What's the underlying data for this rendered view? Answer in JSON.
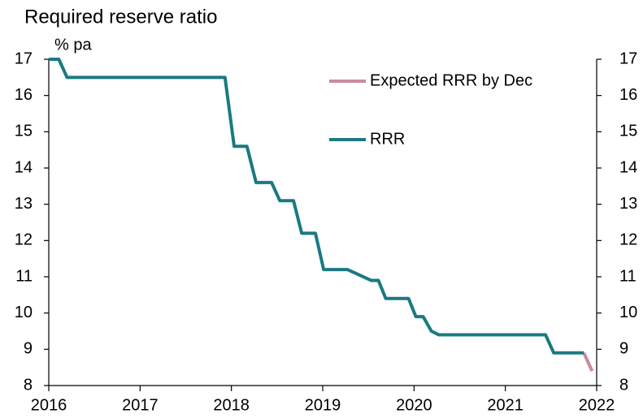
{
  "chart_data": {
    "type": "line",
    "title": "Required reserve ratio",
    "y_label": "% pa",
    "series": [
      {
        "name": "Expected RRR by Dec",
        "color": "#c98aa0",
        "x": [
          2021.86,
          2021.95
        ],
        "values": [
          8.9,
          8.4
        ]
      },
      {
        "name": "RRR",
        "color": "#1a7a80",
        "x": [
          2016.0,
          2016.11,
          2016.2,
          2017.93,
          2018.03,
          2018.17,
          2018.27,
          2018.44,
          2018.53,
          2018.68,
          2018.77,
          2018.92,
          2019.01,
          2019.27,
          2019.53,
          2019.61,
          2019.69,
          2019.94,
          2020.02,
          2020.1,
          2020.19,
          2020.27,
          2021.44,
          2021.53,
          2021.86
        ],
        "values": [
          17,
          17,
          16.5,
          16.5,
          14.6,
          14.6,
          13.6,
          13.6,
          13.1,
          13.1,
          12.2,
          12.2,
          11.2,
          11.2,
          10.9,
          10.9,
          10.4,
          10.4,
          9.9,
          9.9,
          9.5,
          9.4,
          9.4,
          8.9,
          8.9
        ]
      }
    ],
    "xlim": [
      2016,
      2022
    ],
    "xticks": [
      2016,
      2017,
      2018,
      2019,
      2020,
      2021,
      2022
    ],
    "ylim": [
      8,
      17
    ],
    "yticks": [
      8,
      9,
      10,
      11,
      12,
      13,
      14,
      15,
      16,
      17
    ],
    "y2lim": [
      8,
      17
    ],
    "y2ticks": [
      8,
      9,
      10,
      11,
      12,
      13,
      14,
      15,
      16,
      17
    ],
    "legend": "upper right",
    "grid": false
  }
}
